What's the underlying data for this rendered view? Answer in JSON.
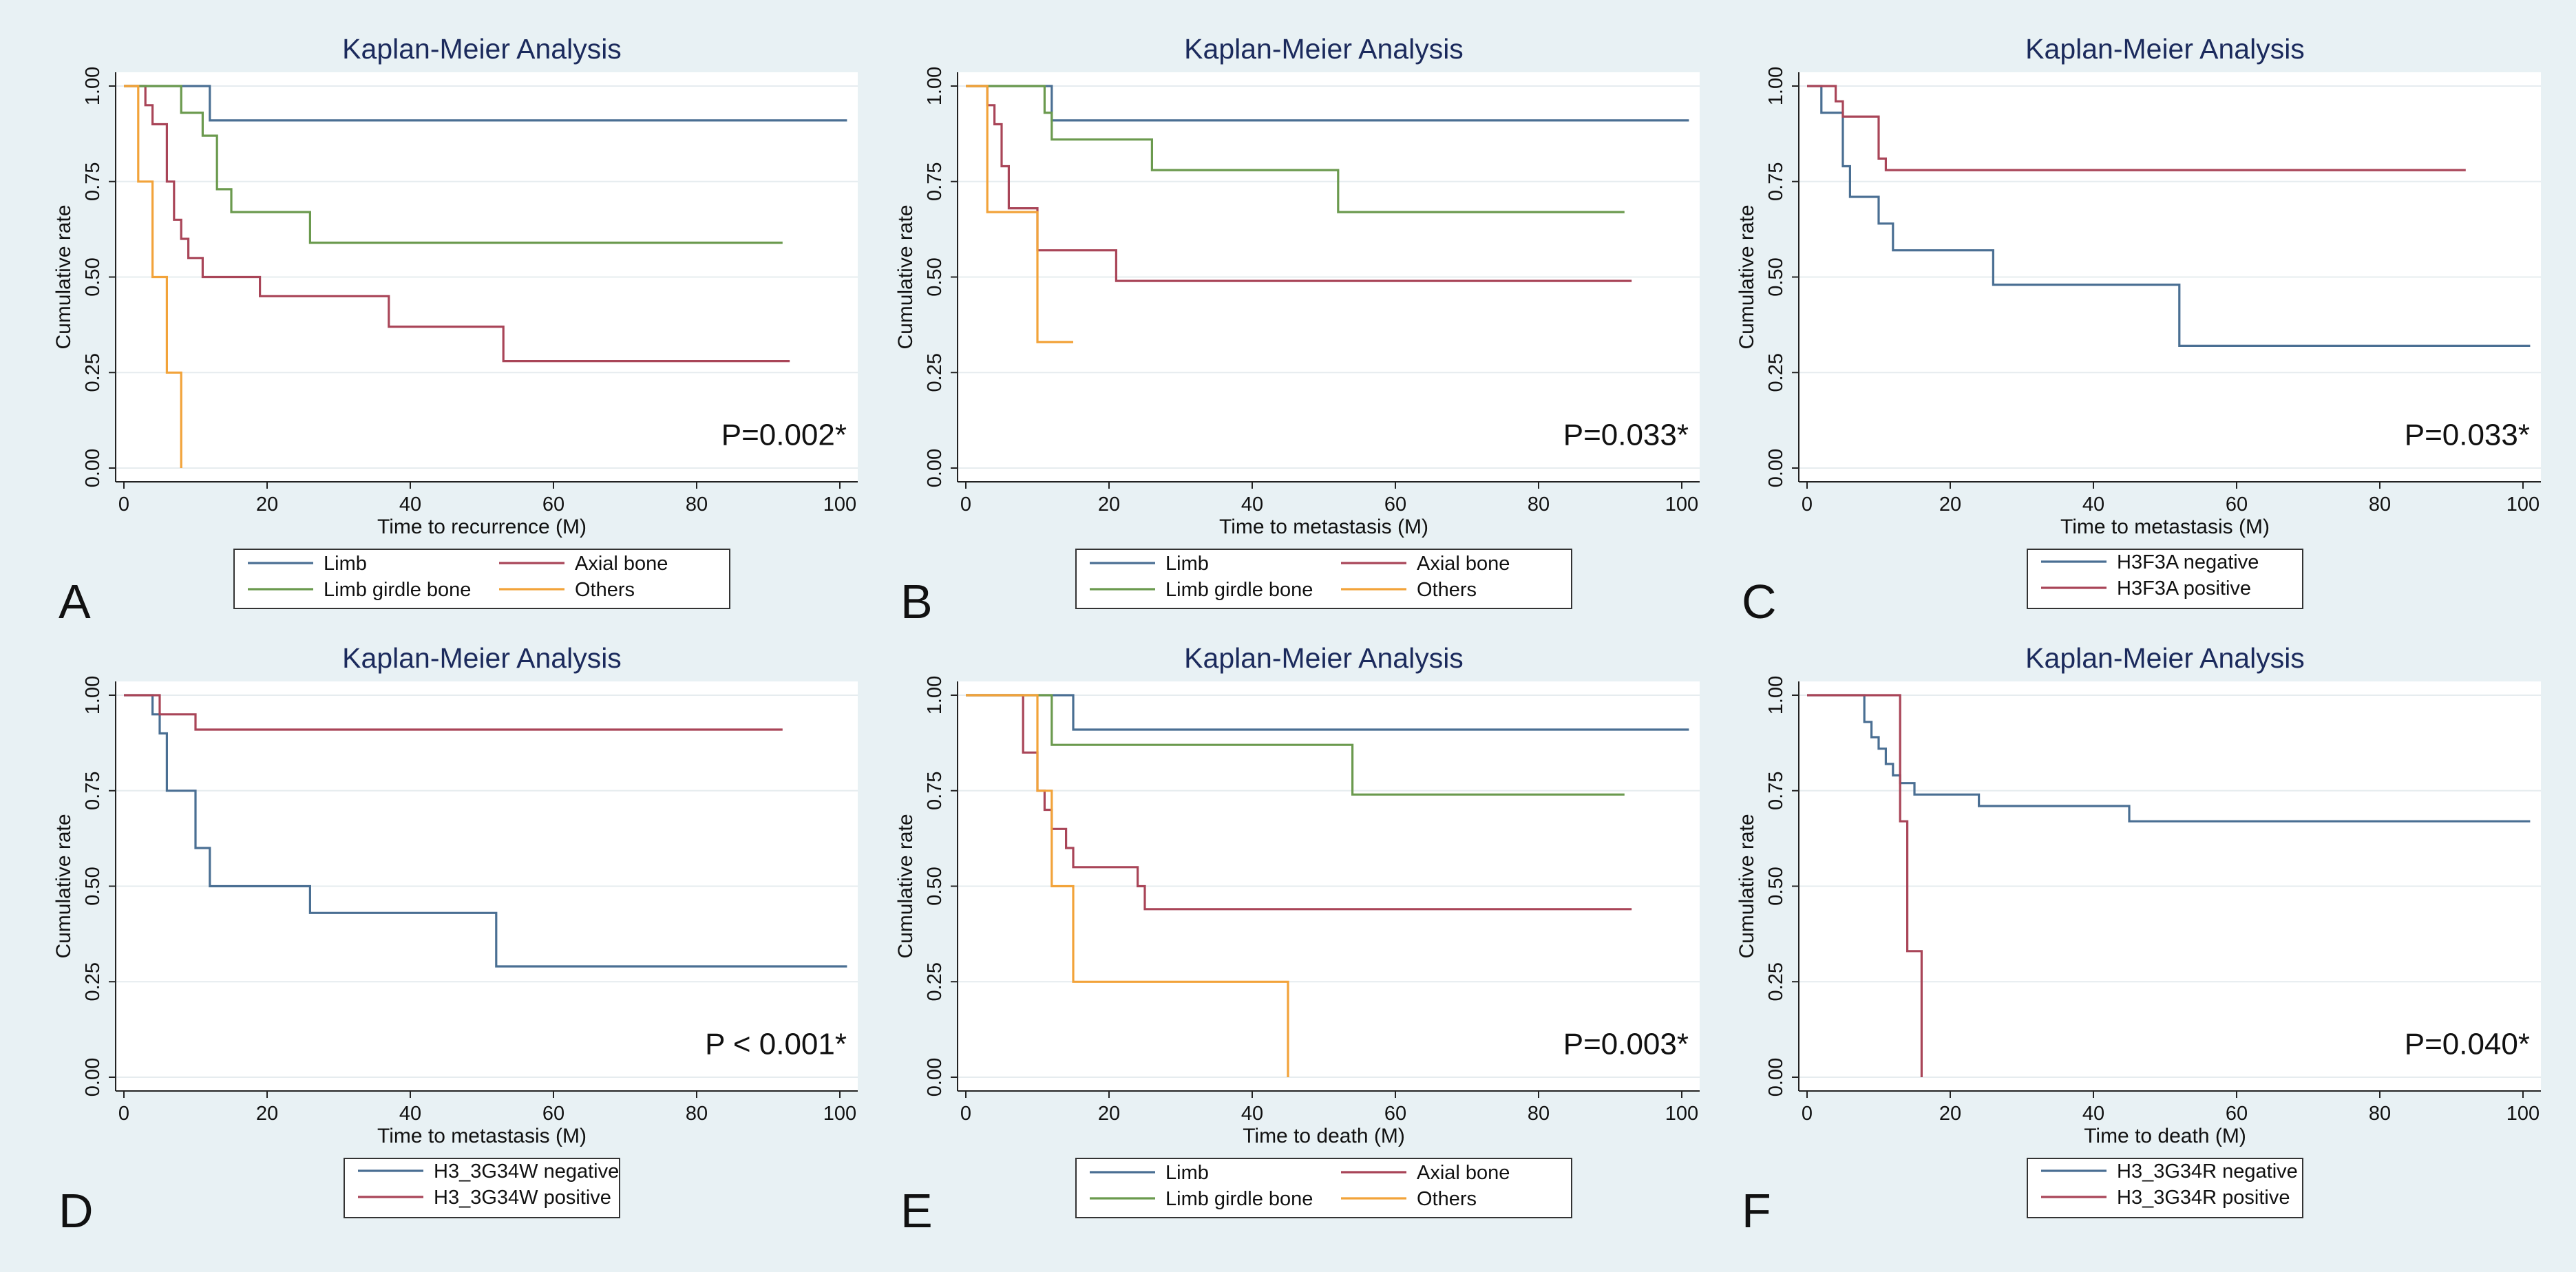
{
  "chart_data": [
    {
      "type": "line",
      "panel_label": "A",
      "title": "Kaplan-Meier Analysis",
      "xlabel": "Time to recurrence (M)",
      "ylabel": "Cumulative rate",
      "xlim": [
        0,
        100
      ],
      "ylim": [
        0,
        1
      ],
      "xticks": [
        "0",
        "20",
        "40",
        "60",
        "80",
        "100"
      ],
      "yticks": [
        "0.00",
        "0.25",
        "0.50",
        "0.75",
        "1.00"
      ],
      "p_value": "P=0.002*",
      "series": [
        {
          "name": "Limb",
          "color": "#4a6f93",
          "x": [
            0,
            12,
            101
          ],
          "y": [
            1.0,
            0.91,
            0.91
          ]
        },
        {
          "name": "Axial bone",
          "color": "#a94558",
          "x": [
            0,
            3,
            4,
            6,
            7,
            8,
            9,
            11,
            12,
            19,
            37,
            53,
            93
          ],
          "y": [
            1.0,
            0.95,
            0.9,
            0.75,
            0.65,
            0.6,
            0.55,
            0.5,
            0.5,
            0.45,
            0.37,
            0.28,
            0.28
          ]
        },
        {
          "name": "Limb girdle bone",
          "color": "#6b9a4e",
          "x": [
            0,
            8,
            11,
            13,
            15,
            26,
            92
          ],
          "y": [
            1.0,
            0.93,
            0.87,
            0.73,
            0.67,
            0.59,
            0.59
          ]
        },
        {
          "name": "Others",
          "color": "#f2a33a",
          "x": [
            0,
            2,
            4,
            6,
            8,
            8
          ],
          "y": [
            1.0,
            0.75,
            0.5,
            0.25,
            0.25,
            0.0
          ]
        }
      ],
      "legend": [
        "Limb",
        "Axial bone",
        "Limb girdle bone",
        "Others"
      ]
    },
    {
      "type": "line",
      "panel_label": "B",
      "title": "Kaplan-Meier Analysis",
      "xlabel": "Time to metastasis (M)",
      "ylabel": "Cumulative rate",
      "xlim": [
        0,
        100
      ],
      "ylim": [
        0,
        1
      ],
      "xticks": [
        "0",
        "20",
        "40",
        "60",
        "80",
        "100"
      ],
      "yticks": [
        "0.00",
        "0.25",
        "0.50",
        "0.75",
        "1.00"
      ],
      "p_value": "P=0.033*",
      "series": [
        {
          "name": "Limb",
          "color": "#4a6f93",
          "x": [
            0,
            12,
            101
          ],
          "y": [
            1.0,
            0.91,
            0.91
          ]
        },
        {
          "name": "Axial bone",
          "color": "#a94558",
          "x": [
            0,
            3,
            4,
            5,
            6,
            10,
            21,
            93
          ],
          "y": [
            1.0,
            0.95,
            0.9,
            0.79,
            0.68,
            0.57,
            0.49,
            0.49
          ]
        },
        {
          "name": "Limb girdle bone",
          "color": "#6b9a4e",
          "x": [
            0,
            11,
            12,
            26,
            52,
            92
          ],
          "y": [
            1.0,
            0.93,
            0.86,
            0.78,
            0.67,
            0.67
          ]
        },
        {
          "name": "Others",
          "color": "#f2a33a",
          "x": [
            0,
            3,
            10,
            15
          ],
          "y": [
            1.0,
            0.67,
            0.33,
            0.33
          ]
        }
      ],
      "legend": [
        "Limb",
        "Axial bone",
        "Limb girdle bone",
        "Others"
      ]
    },
    {
      "type": "line",
      "panel_label": "C",
      "title": "Kaplan-Meier Analysis",
      "xlabel": "Time to metastasis (M)",
      "ylabel": "Cumulative rate",
      "xlim": [
        0,
        100
      ],
      "ylim": [
        0,
        1
      ],
      "xticks": [
        "0",
        "20",
        "40",
        "60",
        "80",
        "100"
      ],
      "yticks": [
        "0.00",
        "0.25",
        "0.50",
        "0.75",
        "1.00"
      ],
      "p_value": "P=0.033*",
      "series": [
        {
          "name": "H3F3A negative",
          "color": "#4a6f93",
          "x": [
            0,
            2,
            5,
            6,
            10,
            12,
            26,
            52,
            101
          ],
          "y": [
            1.0,
            0.93,
            0.79,
            0.71,
            0.64,
            0.57,
            0.48,
            0.32,
            0.32
          ]
        },
        {
          "name": "H3F3A positive",
          "color": "#a94558",
          "x": [
            0,
            4,
            5,
            10,
            11,
            12,
            92
          ],
          "y": [
            1.0,
            0.96,
            0.92,
            0.81,
            0.78,
            0.78,
            0.78
          ]
        }
      ],
      "legend": [
        "H3F3A negative",
        "H3F3A positive"
      ]
    },
    {
      "type": "line",
      "panel_label": "D",
      "title": "Kaplan-Meier Analysis",
      "xlabel": "Time to metastasis (M)",
      "ylabel": "Cumulative rate",
      "xlim": [
        0,
        100
      ],
      "ylim": [
        0,
        1
      ],
      "xticks": [
        "0",
        "20",
        "40",
        "60",
        "80",
        "100"
      ],
      "yticks": [
        "0.00",
        "0.25",
        "0.50",
        "0.75",
        "1.00"
      ],
      "p_value": "P < 0.001*",
      "series": [
        {
          "name": "H3_3G34W negative",
          "color": "#4a6f93",
          "x": [
            0,
            4,
            5,
            6,
            10,
            12,
            26,
            52,
            101
          ],
          "y": [
            1.0,
            0.95,
            0.9,
            0.75,
            0.6,
            0.5,
            0.43,
            0.29,
            0.29
          ]
        },
        {
          "name": "H3_3G34W positive",
          "color": "#a94558",
          "x": [
            0,
            5,
            10,
            92
          ],
          "y": [
            1.0,
            0.95,
            0.91,
            0.91
          ]
        }
      ],
      "legend": [
        "H3_3G34W negative",
        "H3_3G34W positive"
      ]
    },
    {
      "type": "line",
      "panel_label": "E",
      "title": "Kaplan-Meier Analysis",
      "xlabel": "Time to death (M)",
      "ylabel": "Cumulative rate",
      "xlim": [
        0,
        100
      ],
      "ylim": [
        0,
        1
      ],
      "xticks": [
        "0",
        "20",
        "40",
        "60",
        "80",
        "100"
      ],
      "yticks": [
        "0.00",
        "0.25",
        "0.50",
        "0.75",
        "1.00"
      ],
      "p_value": "P=0.003*",
      "series": [
        {
          "name": "Limb",
          "color": "#4a6f93",
          "x": [
            0,
            15,
            101
          ],
          "y": [
            1.0,
            0.91,
            0.91
          ]
        },
        {
          "name": "Axial bone",
          "color": "#a94558",
          "x": [
            0,
            8,
            10,
            11,
            12,
            14,
            15,
            16,
            24,
            25,
            93
          ],
          "y": [
            1.0,
            0.85,
            0.75,
            0.7,
            0.65,
            0.6,
            0.55,
            0.55,
            0.5,
            0.44,
            0.44
          ]
        },
        {
          "name": "Limb girdle bone",
          "color": "#6b9a4e",
          "x": [
            0,
            12,
            54,
            92
          ],
          "y": [
            1.0,
            0.87,
            0.74,
            0.74
          ]
        },
        {
          "name": "Others",
          "color": "#f2a33a",
          "x": [
            0,
            10,
            12,
            15,
            45,
            45
          ],
          "y": [
            1.0,
            0.75,
            0.5,
            0.25,
            0.25,
            0.0
          ]
        }
      ],
      "legend": [
        "Limb",
        "Axial bone",
        "Limb girdle bone",
        "Others"
      ]
    },
    {
      "type": "line",
      "panel_label": "F",
      "title": "Kaplan-Meier Analysis",
      "xlabel": "Time to death (M)",
      "ylabel": "Cumulative rate",
      "xlim": [
        0,
        100
      ],
      "ylim": [
        0,
        1
      ],
      "xticks": [
        "0",
        "20",
        "40",
        "60",
        "80",
        "100"
      ],
      "yticks": [
        "0.00",
        "0.25",
        "0.50",
        "0.75",
        "1.00"
      ],
      "p_value": "P=0.040*",
      "series": [
        {
          "name": "H3_3G34R negative",
          "color": "#4a6f93",
          "x": [
            0,
            8,
            9,
            10,
            11,
            12,
            13,
            15,
            24,
            45,
            101
          ],
          "y": [
            1.0,
            0.93,
            0.89,
            0.86,
            0.82,
            0.79,
            0.77,
            0.74,
            0.71,
            0.67,
            0.67
          ]
        },
        {
          "name": "H3_3G34R positive",
          "color": "#a94558",
          "x": [
            0,
            13,
            14,
            15,
            16,
            16
          ],
          "y": [
            1.0,
            0.67,
            0.33,
            0.33,
            0.33,
            0.0
          ]
        }
      ],
      "legend": [
        "H3_3G34R negative",
        "H3_3G34R positive"
      ]
    }
  ]
}
